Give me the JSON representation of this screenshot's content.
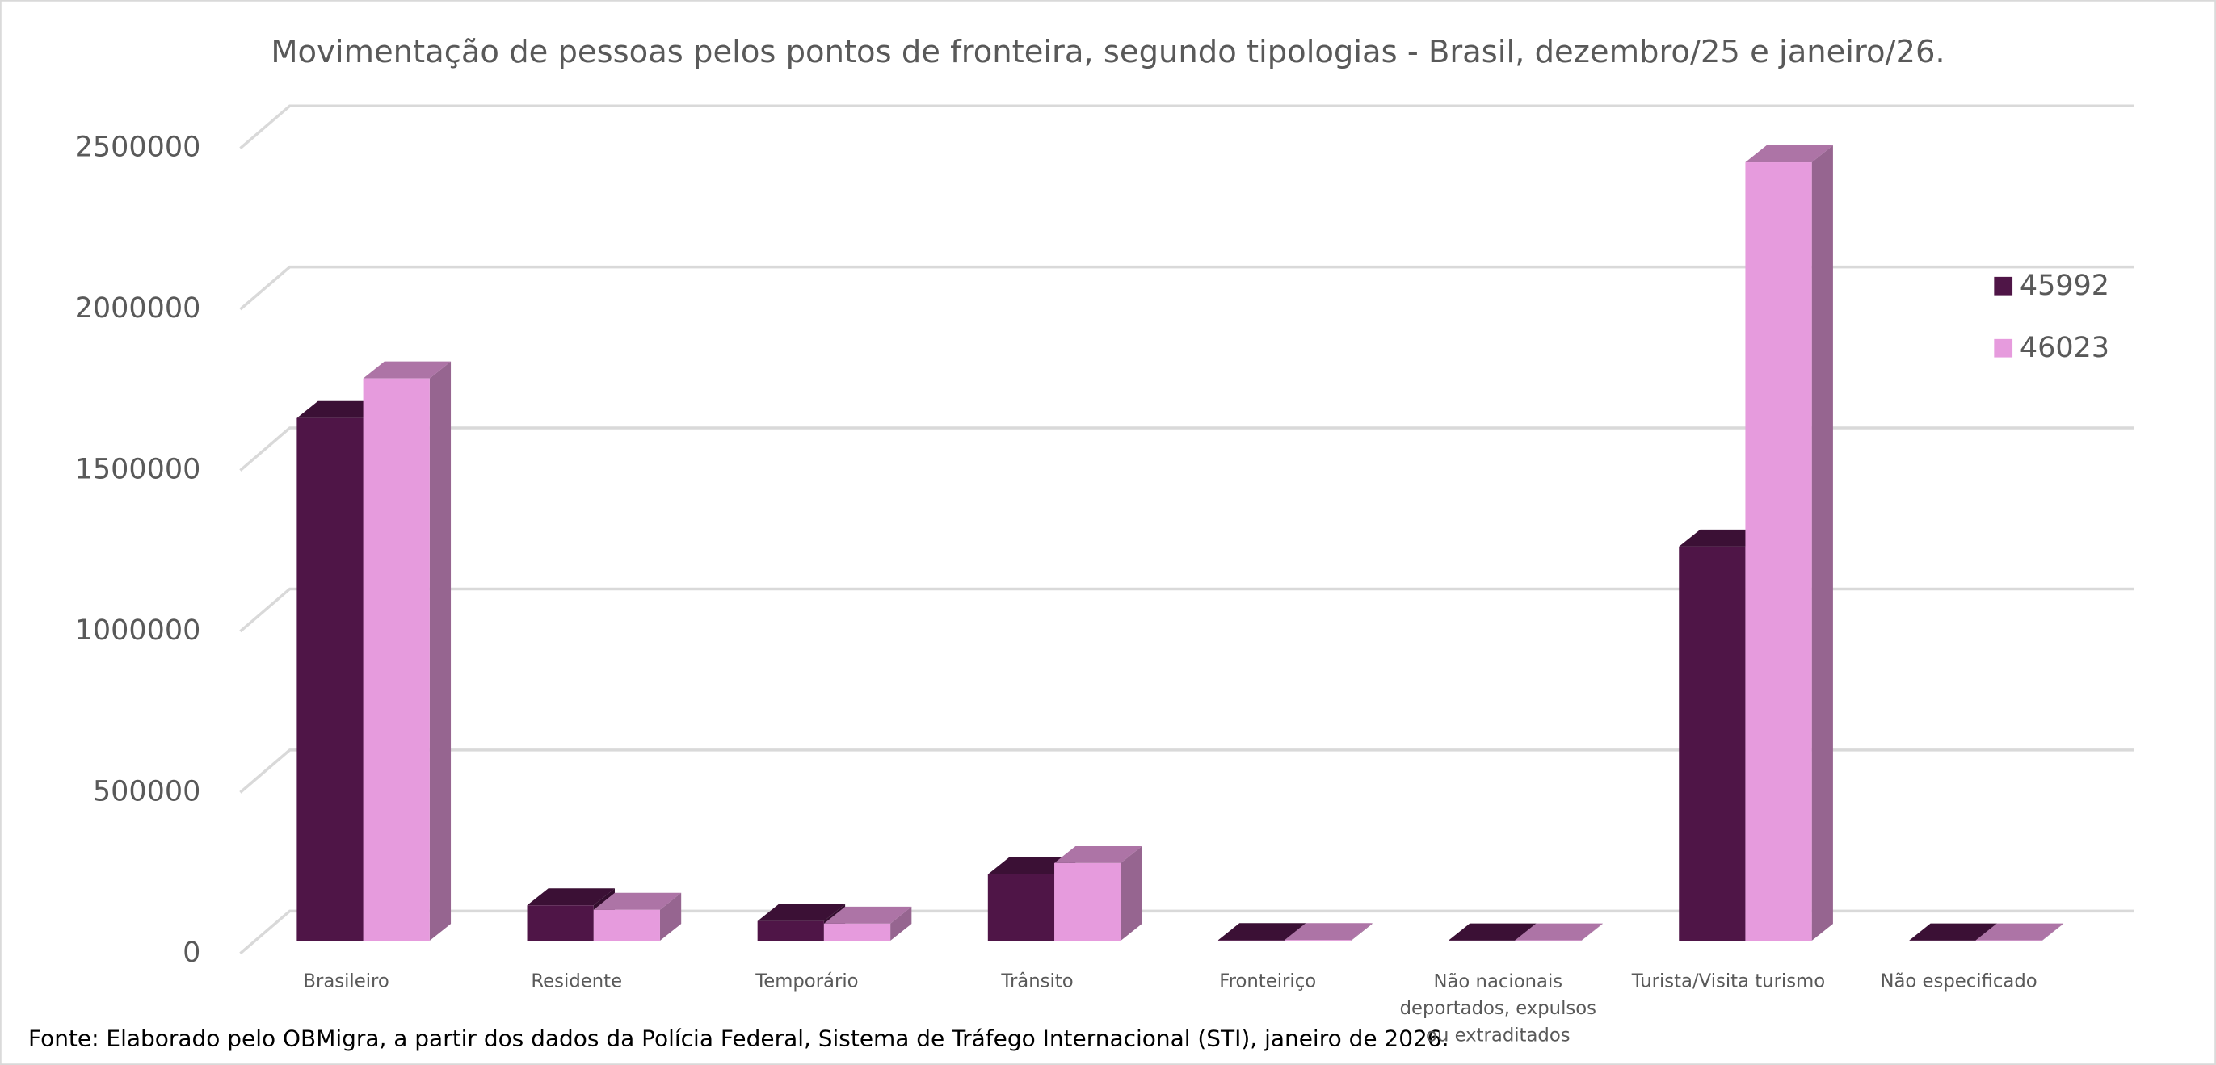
{
  "chart_data": {
    "type": "bar3d",
    "title": "Movimentação de pessoas pelos pontos de fronteira, segundo tipologias - Brasil, dezembro/25 e janeiro/26.",
    "footnote": "Fonte: Elaborado pelo OBMigra, a partir dos dados da Polícia Federal, Sistema de Tráfego Internacional (STI), janeiro  de 2026.",
    "categories": [
      "Brasileiro",
      "Residente",
      "Temporário",
      "Trânsito",
      "Fronteiriço",
      "Não nacionais deportados, expulsos ou extraditados",
      "Turista/Visita turismo",
      "Não especificado"
    ],
    "series": [
      {
        "name": "45992",
        "color": "#4f1547",
        "values": [
          1623000,
          110000,
          61000,
          206000,
          2000,
          1000,
          1224000,
          1000
        ]
      },
      {
        "name": "46023",
        "color": "#e69bdd",
        "values": [
          1746000,
          96000,
          53000,
          241000,
          2000,
          1000,
          2417000,
          1000
        ]
      }
    ],
    "ylim": [
      0,
      2500000
    ],
    "yticks": [
      0,
      500000,
      1000000,
      1500000,
      2000000,
      2500000
    ],
    "grid": true,
    "legend": "right"
  }
}
